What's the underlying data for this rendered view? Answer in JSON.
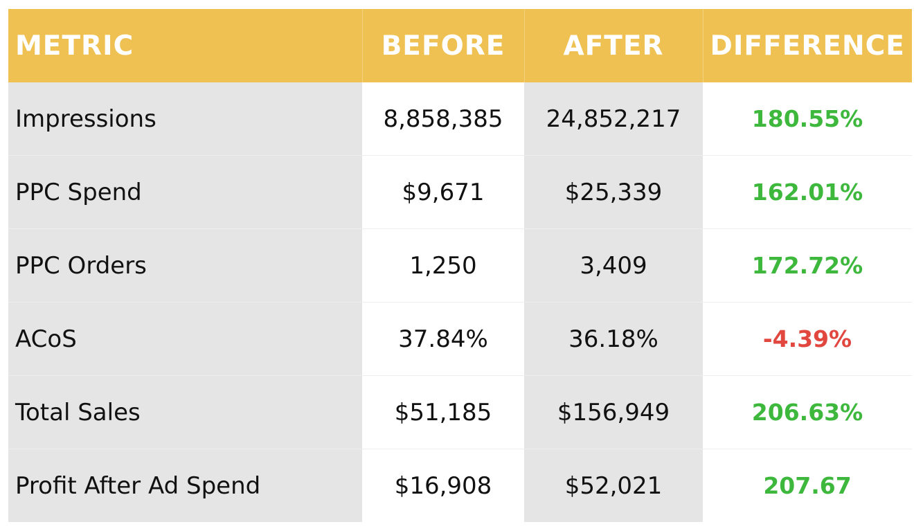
{
  "table": {
    "headers": {
      "metric": "METRIC",
      "before": "BEFORE",
      "after": "AFTER",
      "difference": "DIFFERENCE"
    },
    "rows": [
      {
        "metric": "Impressions",
        "before": "8,858,385",
        "after": "24,852,217",
        "difference": "180.55%",
        "trend": "positive"
      },
      {
        "metric": "PPC Spend",
        "before": "$9,671",
        "after": "$25,339",
        "difference": "162.01%",
        "trend": "positive"
      },
      {
        "metric": "PPC Orders",
        "before": "1,250",
        "after": "3,409",
        "difference": "172.72%",
        "trend": "positive"
      },
      {
        "metric": "ACoS",
        "before": "37.84%",
        "after": "36.18%",
        "difference": "-4.39%",
        "trend": "negative"
      },
      {
        "metric": "Total Sales",
        "before": "$51,185",
        "after": "$156,949",
        "difference": "206.63%",
        "trend": "positive"
      },
      {
        "metric": "Profit After Ad Spend",
        "before": "$16,908",
        "after": "$52,021",
        "difference": "207.67",
        "trend": "positive"
      }
    ]
  },
  "colors": {
    "header_background": "#eec152",
    "header_text": "#ffffff",
    "shaded_column": "#e5e5e5",
    "positive": "#3db83d",
    "negative": "#e1463f"
  }
}
